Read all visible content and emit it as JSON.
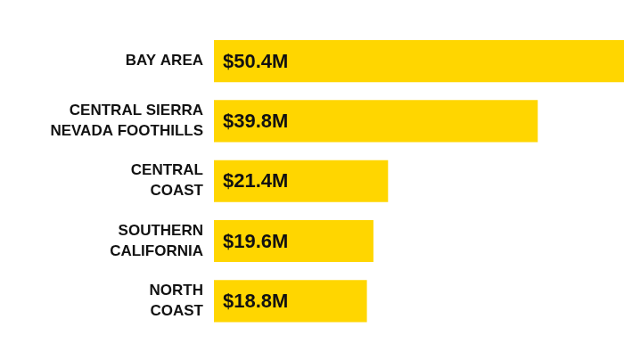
{
  "chart_data": {
    "type": "bar",
    "orientation": "horizontal",
    "categories": [
      "BAY AREA",
      "CENTRAL SIERRA\nNEVADA FOOTHILLS",
      "CENTRAL\nCOAST",
      "SOUTHERN\nCALIFORNIA",
      "NORTH\nCOAST"
    ],
    "values": [
      50.4,
      39.8,
      21.4,
      19.6,
      18.8
    ],
    "value_labels": [
      "$50.4M",
      "$39.8M",
      "$21.4M",
      "$19.6M",
      "$18.8M"
    ],
    "color": "#ffd600",
    "xlim": [
      0,
      50.4
    ],
    "grid": false,
    "data_labels": true,
    "tick_labels": "y"
  }
}
